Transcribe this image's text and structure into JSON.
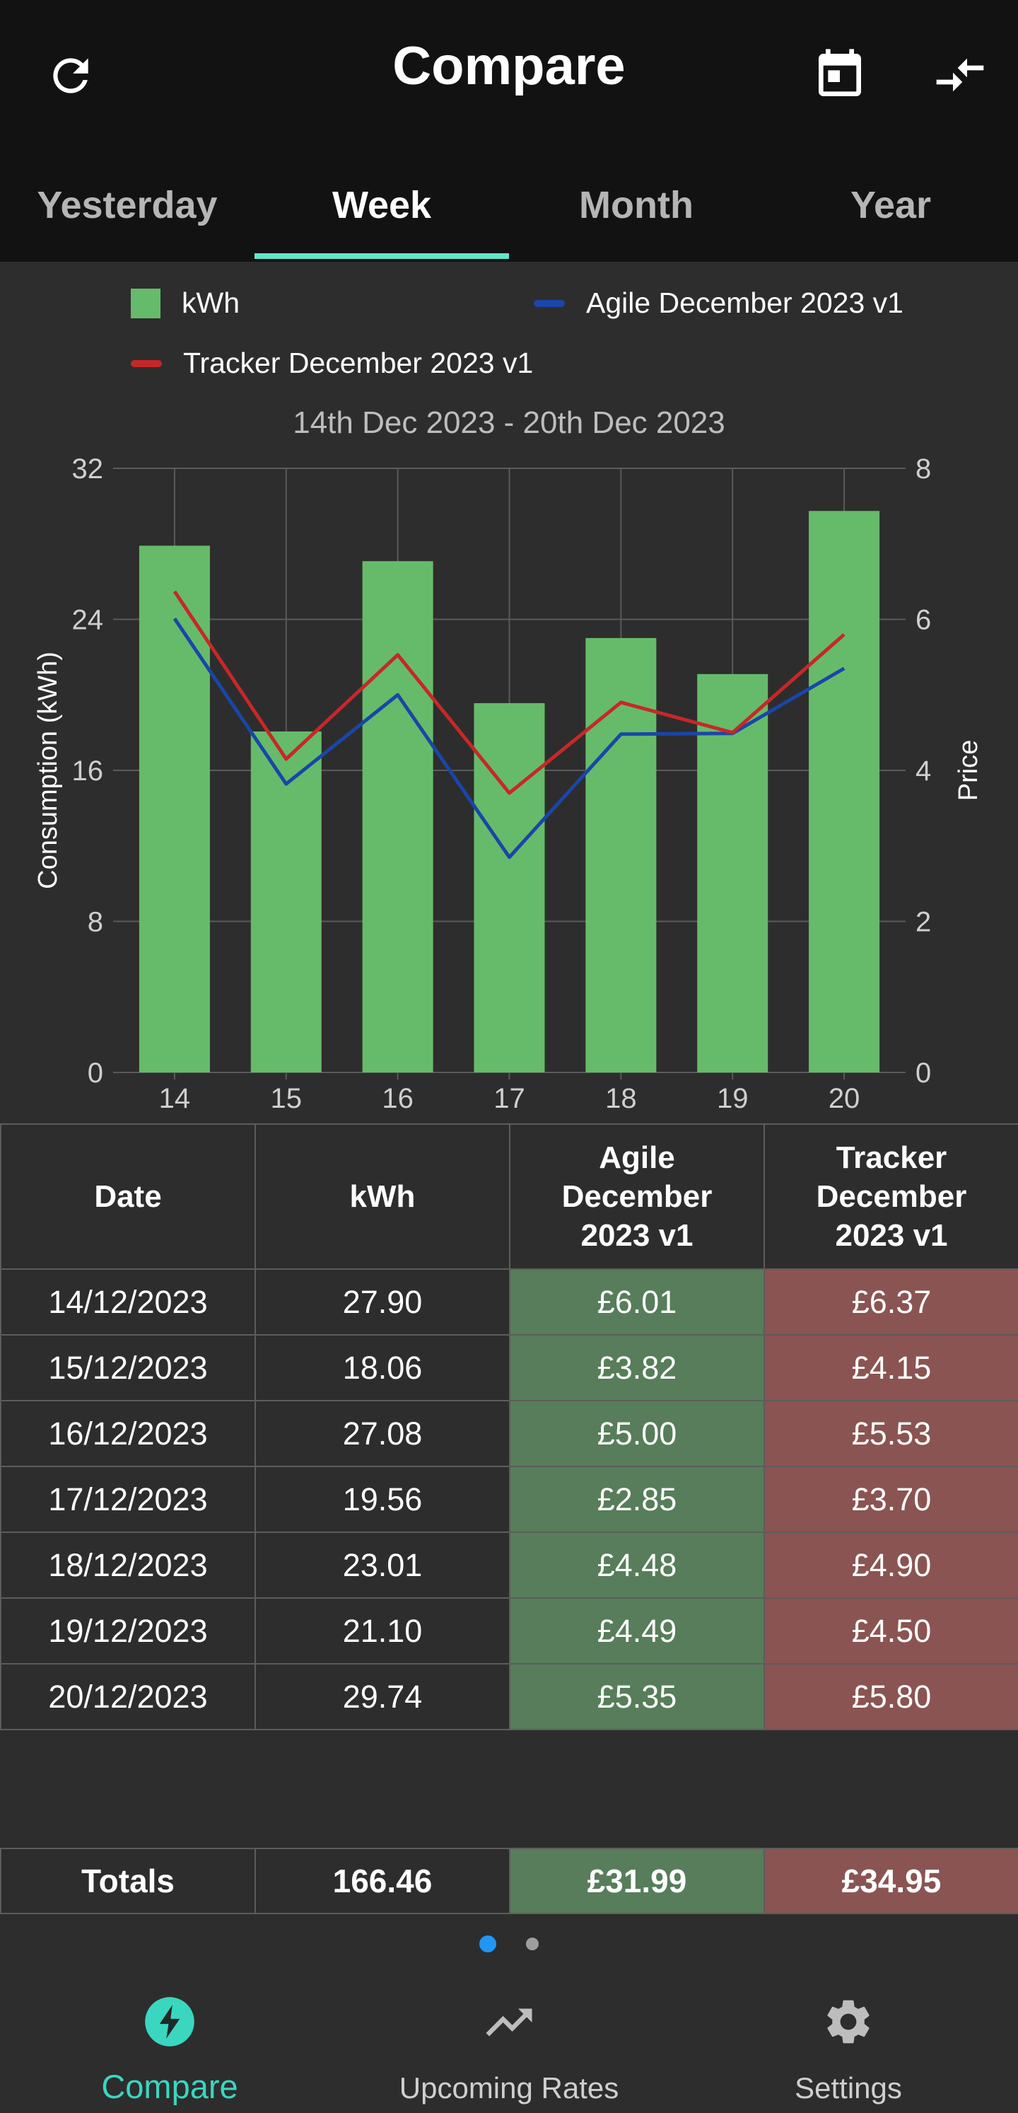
{
  "header": {
    "title": "Compare",
    "refresh_icon": "refresh-icon",
    "calendar_icon": "calendar-icon",
    "compress_icon": "compress-arrows-icon"
  },
  "tabs": [
    {
      "label": "Yesterday",
      "active": false
    },
    {
      "label": "Week",
      "active": true
    },
    {
      "label": "Month",
      "active": false
    },
    {
      "label": "Year",
      "active": false
    }
  ],
  "colors": {
    "bar": "#66bb6a",
    "agile": "#1a46a8",
    "tracker": "#c62828",
    "accent": "#5ee8c8",
    "agile_cell": "#577d5a",
    "tracker_cell": "#8a5452"
  },
  "legend": {
    "kwh": "kWh",
    "agile": "Agile December 2023 v1",
    "tracker": "Tracker December 2023 v1"
  },
  "chart_data": {
    "type": "bar",
    "title": "14th Dec 2023 - 20th Dec 2023",
    "categories": [
      "14",
      "15",
      "16",
      "17",
      "18",
      "19",
      "20"
    ],
    "ylabel": "Consumption (kWh)",
    "y2label": "Price",
    "ylim": [
      0,
      32
    ],
    "y2lim": [
      0,
      8
    ],
    "yticks": [
      0,
      8,
      16,
      24,
      32
    ],
    "y2ticks": [
      0,
      2,
      4,
      6,
      8
    ],
    "grid": true,
    "legend_position": "top",
    "series": [
      {
        "name": "kWh",
        "type": "bar",
        "axis": "left",
        "values": [
          27.9,
          18.06,
          27.08,
          19.56,
          23.01,
          21.1,
          29.74
        ]
      },
      {
        "name": "Agile December 2023 v1",
        "type": "line",
        "axis": "right",
        "values": [
          6.01,
          3.82,
          5.0,
          2.85,
          4.48,
          4.49,
          5.35
        ]
      },
      {
        "name": "Tracker December 2023 v1",
        "type": "line",
        "axis": "right",
        "values": [
          6.37,
          4.15,
          5.53,
          3.7,
          4.9,
          4.5,
          5.8
        ]
      }
    ]
  },
  "table": {
    "headers": {
      "date": "Date",
      "kwh": "kWh",
      "agile": "Agile December 2023 v1",
      "tracker": "Tracker December 2023 v1"
    },
    "rows": [
      {
        "date": "14/12/2023",
        "kwh": "27.90",
        "agile": "£6.01",
        "tracker": "£6.37"
      },
      {
        "date": "15/12/2023",
        "kwh": "18.06",
        "agile": "£3.82",
        "tracker": "£4.15"
      },
      {
        "date": "16/12/2023",
        "kwh": "27.08",
        "agile": "£5.00",
        "tracker": "£5.53"
      },
      {
        "date": "17/12/2023",
        "kwh": "19.56",
        "agile": "£2.85",
        "tracker": "£3.70"
      },
      {
        "date": "18/12/2023",
        "kwh": "23.01",
        "agile": "£4.48",
        "tracker": "£4.90"
      },
      {
        "date": "19/12/2023",
        "kwh": "21.10",
        "agile": "£4.49",
        "tracker": "£4.50"
      },
      {
        "date": "20/12/2023",
        "kwh": "29.74",
        "agile": "£5.35",
        "tracker": "£5.80"
      }
    ],
    "totals": {
      "label": "Totals",
      "kwh": "166.46",
      "agile": "£31.99",
      "tracker": "£34.95"
    }
  },
  "pager": {
    "pages": 2,
    "current": 1
  },
  "bottom_nav": [
    {
      "label": "Compare",
      "icon": "bolt-icon",
      "active": true
    },
    {
      "label": "Upcoming Rates",
      "icon": "trending-up-icon",
      "active": false
    },
    {
      "label": "Settings",
      "icon": "gear-icon",
      "active": false
    }
  ]
}
